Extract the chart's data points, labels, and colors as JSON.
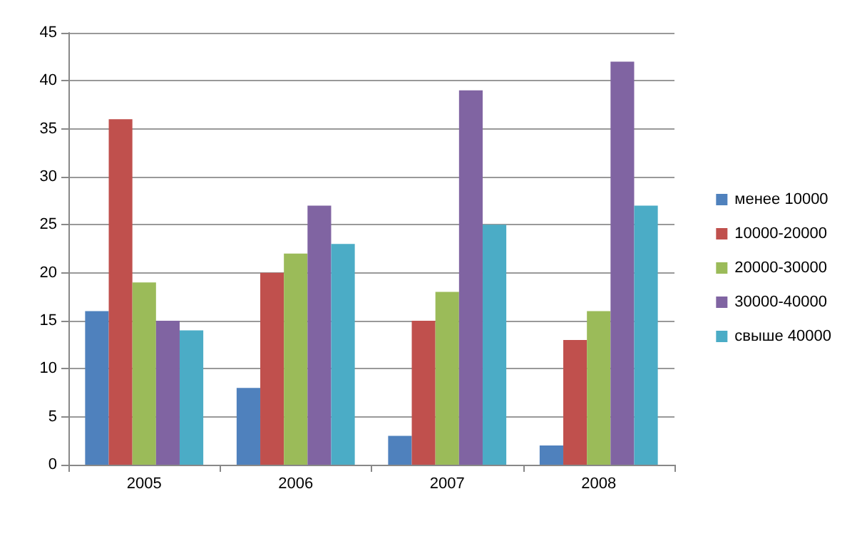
{
  "chart_data": {
    "type": "bar",
    "categories": [
      "2005",
      "2006",
      "2007",
      "2008"
    ],
    "series": [
      {
        "name": "менее 10000",
        "color": "#4f81bd",
        "values": [
          16,
          8,
          3,
          2
        ]
      },
      {
        "name": "10000-20000",
        "color": "#c0504d",
        "values": [
          36,
          20,
          15,
          13
        ]
      },
      {
        "name": "20000-30000",
        "color": "#9bbb59",
        "values": [
          19,
          22,
          18,
          16
        ]
      },
      {
        "name": "30000-40000",
        "color": "#8064a2",
        "values": [
          15,
          27,
          39,
          42
        ]
      },
      {
        "name": "свыше 40000",
        "color": "#4bacc6",
        "values": [
          14,
          23,
          25,
          27
        ]
      }
    ],
    "ylim": [
      0,
      45
    ],
    "yticks": [
      0,
      5,
      10,
      15,
      20,
      25,
      30,
      35,
      40,
      45
    ],
    "grid": "y",
    "legend": "right"
  }
}
